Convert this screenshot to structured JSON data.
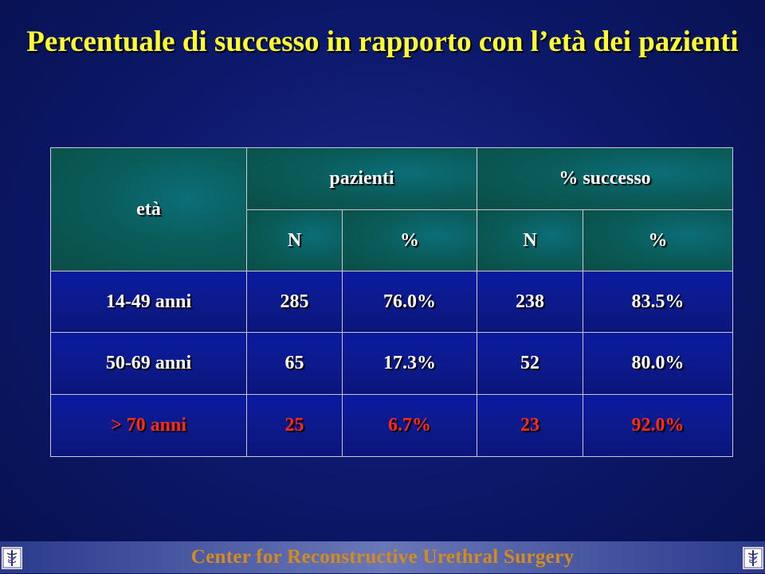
{
  "title": "Percentuale di successo in rapporto con l’età dei pazienti",
  "table": {
    "header": {
      "age": "età",
      "patients": "pazienti",
      "success": "% successo",
      "n1": "N",
      "pct1": "%",
      "n2": "N",
      "pct2": "%"
    },
    "rows": [
      {
        "age": "14-49 anni",
        "n": "285",
        "pct": "76.0%",
        "sn": "238",
        "spct": "83.5%"
      },
      {
        "age": "50-69 anni",
        "n": "65",
        "pct": "17.3%",
        "sn": "52",
        "spct": "80.0%"
      },
      {
        "age": "> 70 anni",
        "n": "25",
        "pct": "6.7%",
        "sn": "23",
        "spct": "92.0%"
      }
    ]
  },
  "footer": {
    "text": "Center for Reconstructive Urethral Surgery",
    "logo_icon": "caduceus-logo-icon"
  },
  "colors": {
    "title": "#ffff33",
    "highlight_row": "#ff2a1a",
    "footer_text": "#d48b1e"
  }
}
